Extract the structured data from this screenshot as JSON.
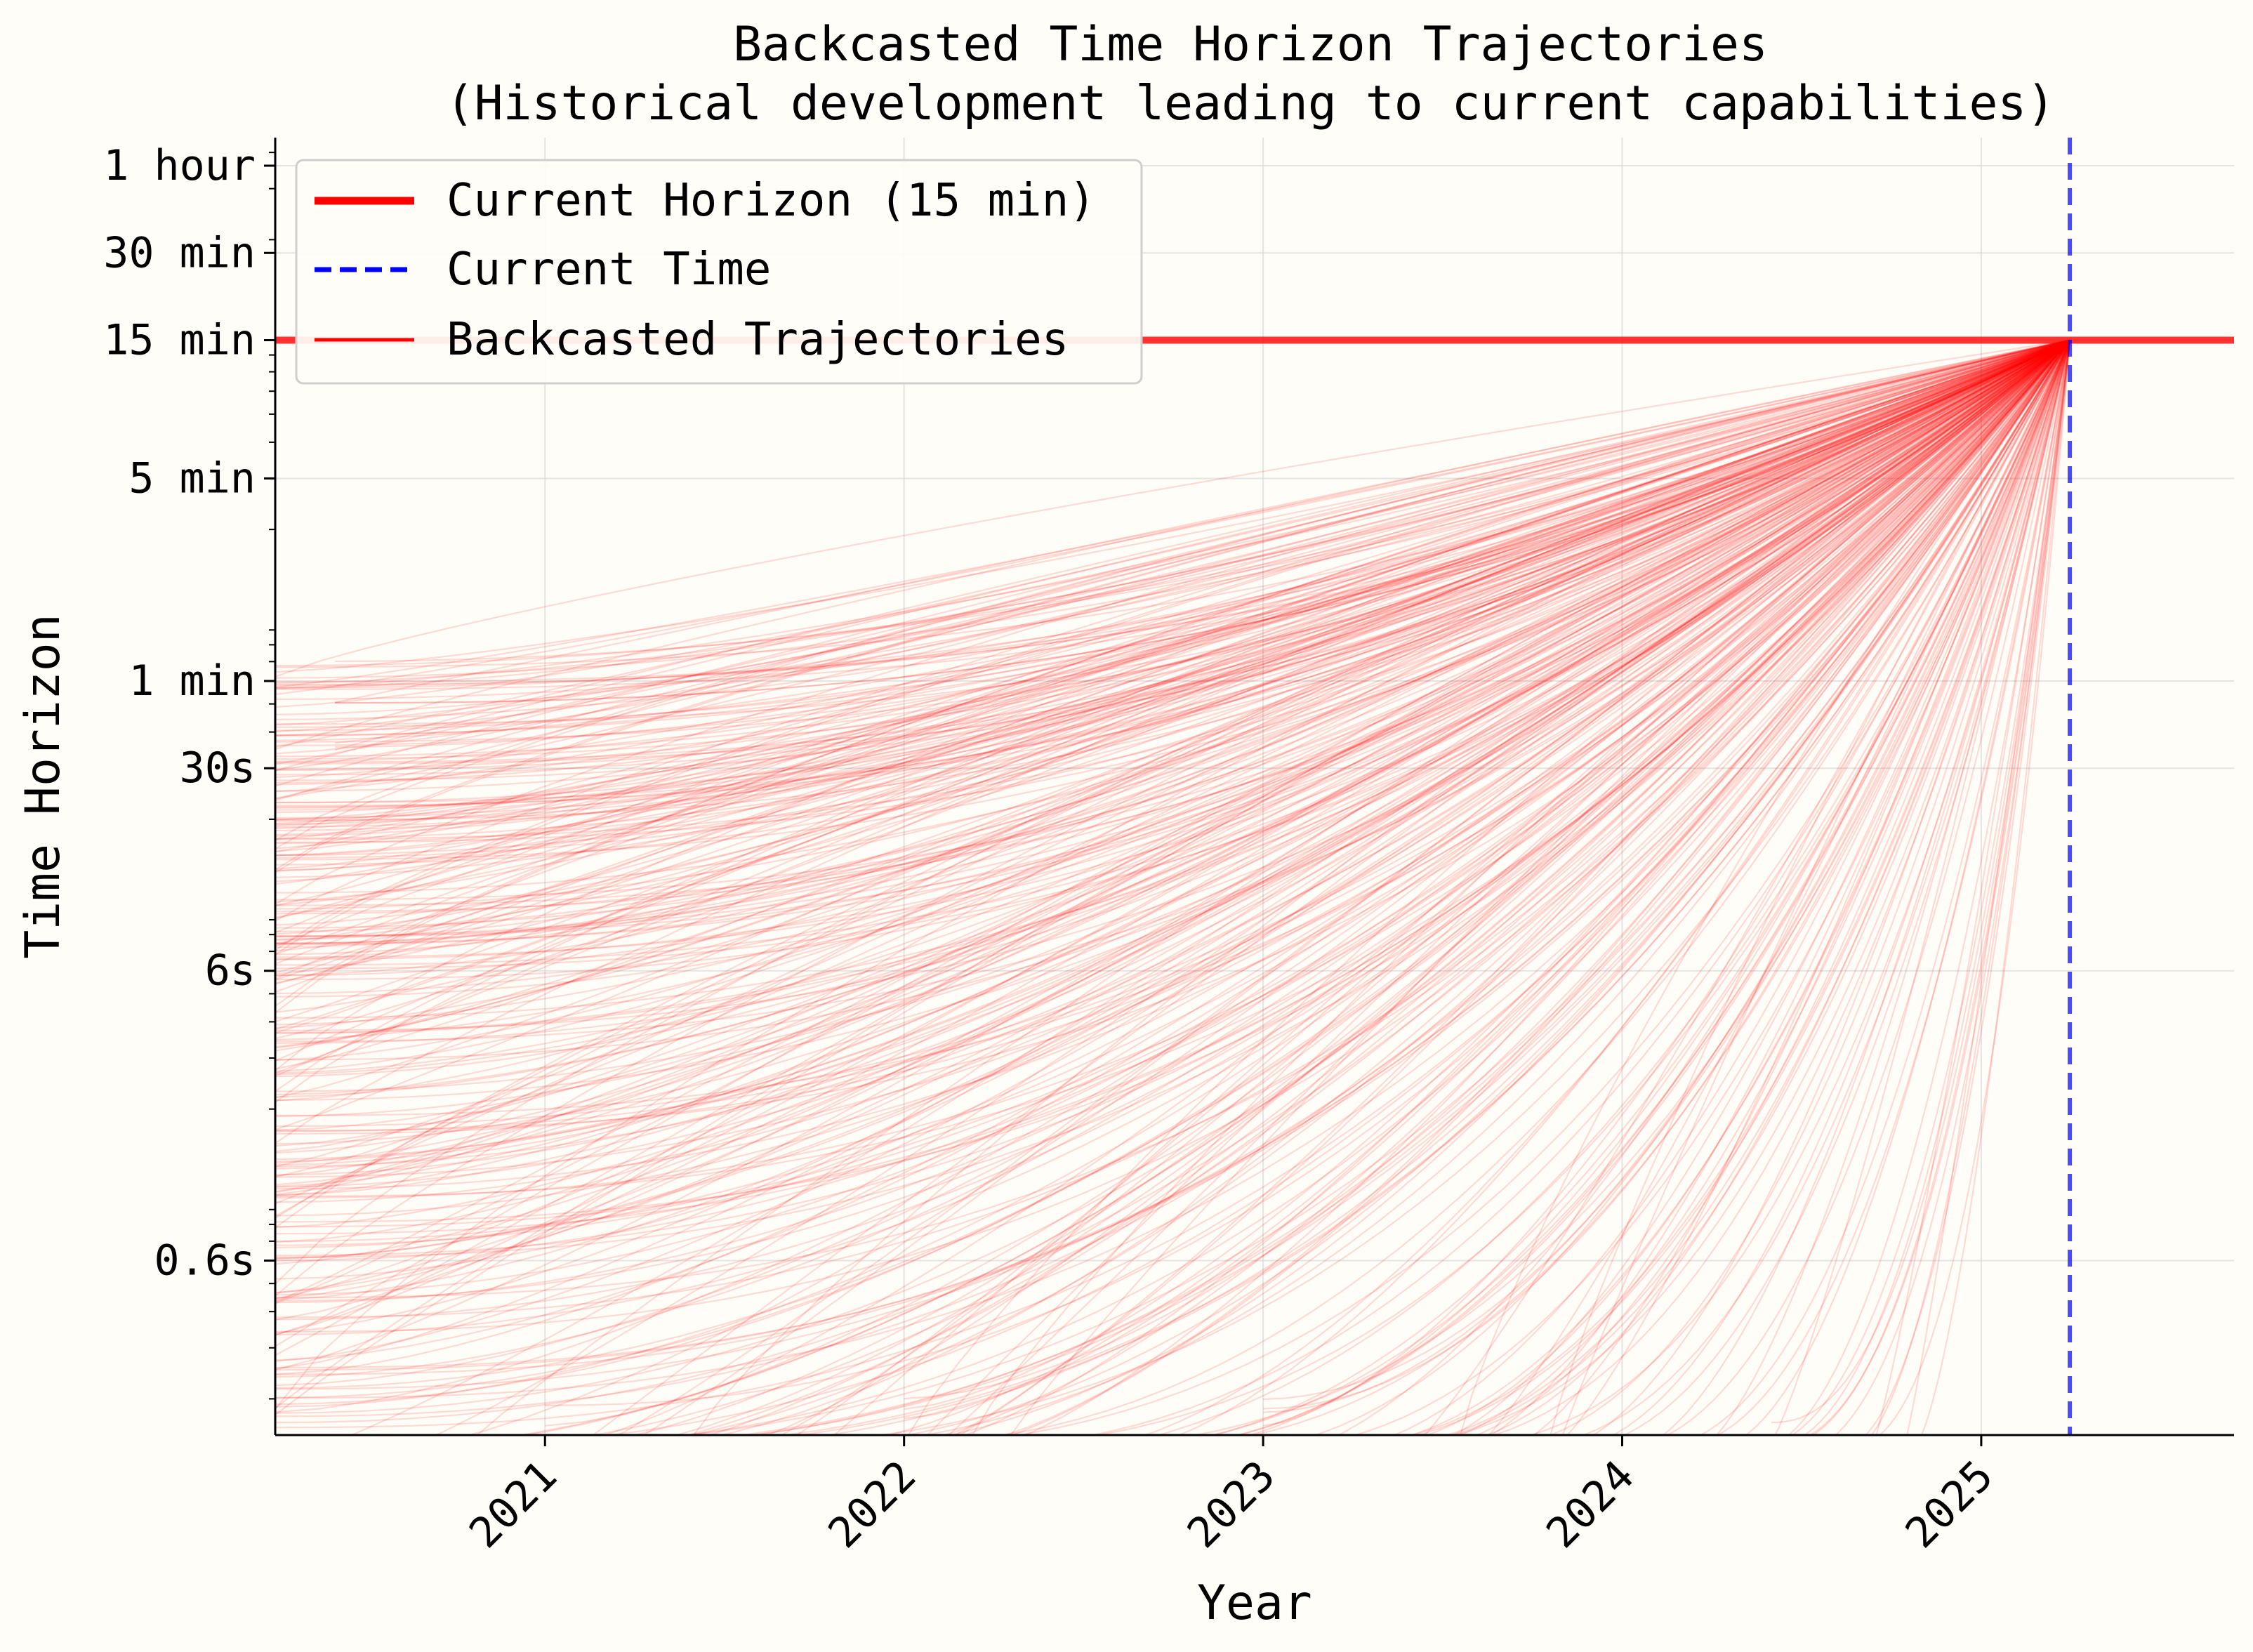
{
  "chart_data": {
    "type": "line",
    "title": "Backcasted Time Horizon Trajectories",
    "subtitle": "(Historical development leading to current capabilities)",
    "xlabel": "Year",
    "ylabel": "Time Horizon",
    "x_scale": "time",
    "y_scale": "log",
    "xlim": [
      "2020-04-01",
      "2025-09-15"
    ],
    "ylim_seconds": [
      0.15,
      4500
    ],
    "x_ticks": [
      {
        "value": "2021-01-01",
        "label": "2021"
      },
      {
        "value": "2022-01-01",
        "label": "2022"
      },
      {
        "value": "2023-01-01",
        "label": "2023"
      },
      {
        "value": "2024-01-01",
        "label": "2024"
      },
      {
        "value": "2025-01-01",
        "label": "2025"
      }
    ],
    "y_ticks": [
      {
        "seconds": 0.6,
        "label": "0.6s"
      },
      {
        "seconds": 6,
        "label": "6s"
      },
      {
        "seconds": 30,
        "label": "30s"
      },
      {
        "seconds": 60,
        "label": "1 min"
      },
      {
        "seconds": 300,
        "label": "5 min"
      },
      {
        "seconds": 900,
        "label": "15 min"
      },
      {
        "seconds": 1800,
        "label": "30 min"
      },
      {
        "seconds": 3600,
        "label": "1 hour"
      }
    ],
    "grid": true,
    "legend_position": "top-left",
    "legend": [
      {
        "label": "Current Horizon (15 min)",
        "style": "solid-thick",
        "color": "#ff0000"
      },
      {
        "label": "Current Time",
        "style": "dashed",
        "color": "#0000ff"
      },
      {
        "label": "Backcasted Trajectories",
        "style": "solid-thin",
        "color": "#ff0000"
      }
    ],
    "current_horizon_seconds": 900,
    "current_time": "2025-04-01",
    "series": [
      {
        "type": "hline",
        "y_seconds": 900,
        "color": "#ff0000"
      },
      {
        "type": "vline",
        "x": "2025-04-01",
        "color": "#0000ff"
      },
      {
        "type": "trajectory_bundle",
        "color": "#ff0000",
        "end": {
          "x": "2025-04-01",
          "y_seconds": 900
        },
        "trajectories": [
          {
            "start": "2020-04-01",
            "start_seconds": 20
          },
          {
            "start": "2020-04-01",
            "start_seconds": 10
          },
          {
            "start": "2020-04-01",
            "start_seconds": 6
          },
          {
            "start": "2020-04-01",
            "start_seconds": 3
          },
          {
            "start": "2020-04-01",
            "start_seconds": 1.5
          },
          {
            "start": "2020-04-01",
            "start_seconds": 0.8
          },
          {
            "start": "2020-04-01",
            "start_seconds": 0.4
          },
          {
            "start": "2020-06-01",
            "start_seconds": 60
          },
          {
            "start": "2020-06-01",
            "start_seconds": 40
          },
          {
            "start": "2021-01-01",
            "start_seconds": 0.15
          },
          {
            "start": "2022-01-01",
            "start_seconds": 0.15
          },
          {
            "start": "2023-01-01",
            "start_seconds": 0.15
          },
          {
            "start": "2024-06-01",
            "start_seconds": 0.15
          }
        ]
      }
    ]
  }
}
